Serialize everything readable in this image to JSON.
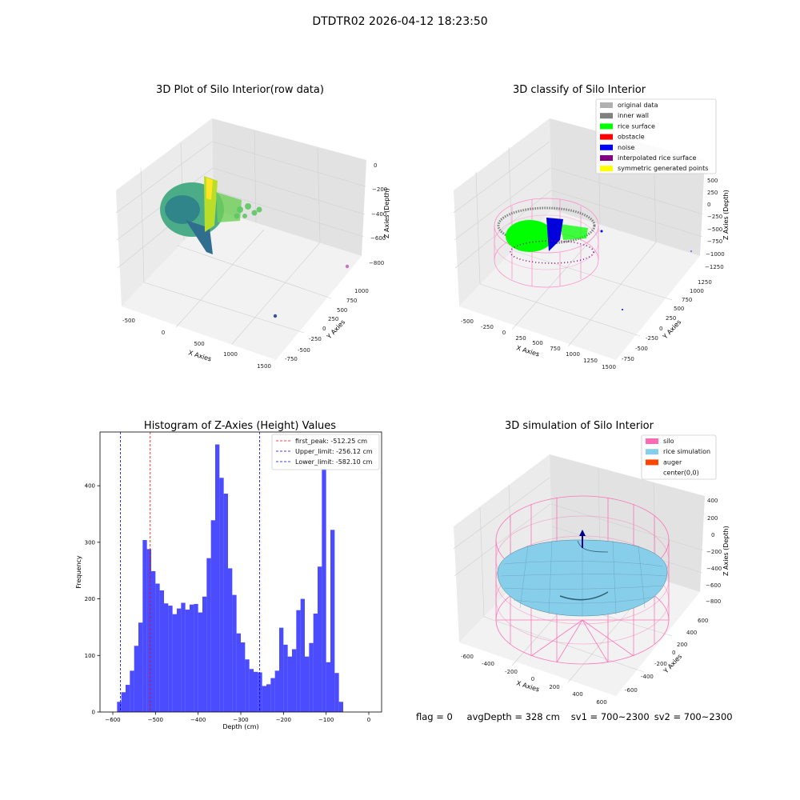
{
  "suptitle": "DTDTR02 2026-04-12 18:23:50",
  "panels": {
    "raw": {
      "title": "3D Plot of Silo Interior(row data)",
      "xlabel": "X Axies",
      "ylabel": "Y Axies",
      "zlabel": "Z Axies (Depth)",
      "xticks": [
        "-500",
        "0",
        "500",
        "1000",
        "1500"
      ],
      "yticks": [
        "-750",
        "-500",
        "-250",
        "0",
        "250",
        "500",
        "750",
        "1000"
      ],
      "zticks": [
        "0",
        "−200",
        "−400",
        "−600",
        "−800"
      ]
    },
    "classify": {
      "title": "3D classify of Silo Interior",
      "xlabel": "X Axies",
      "ylabel": "Y Axies",
      "zlabel": "Z Axies (Depth)",
      "xticks": [
        "-500",
        "-250",
        "0",
        "250",
        "500",
        "750",
        "1000",
        "1250",
        "1500"
      ],
      "yticks": [
        "-750",
        "-500",
        "-250",
        "0",
        "250",
        "500",
        "750",
        "1000",
        "1250"
      ],
      "zticks": [
        "500",
        "250",
        "0",
        "−250",
        "−500",
        "−750",
        "−1000",
        "−1250"
      ],
      "legend": [
        {
          "label": "original data",
          "color": "#b0b0b0"
        },
        {
          "label": "inner wall",
          "color": "#808080"
        },
        {
          "label": "rice surface",
          "color": "#00ff00"
        },
        {
          "label": "obstacle",
          "color": "#ff0000"
        },
        {
          "label": "noise",
          "color": "#0000ff"
        },
        {
          "label": "interpolated rice surface",
          "color": "#800080"
        },
        {
          "label": "symmetric generated points",
          "color": "#ffff00"
        }
      ]
    },
    "simulation": {
      "title": "3D simulation of Silo Interior",
      "xlabel": "X Axies",
      "ylabel": "Y Axies",
      "zlabel": "Z Axies (Depth)",
      "xticks": [
        "-600",
        "-400",
        "-200",
        "0",
        "200",
        "400",
        "600"
      ],
      "yticks": [
        "-600",
        "-400",
        "-200",
        "0",
        "200",
        "400",
        "600"
      ],
      "zticks": [
        "400",
        "200",
        "0",
        "−200",
        "−400",
        "−600",
        "−800"
      ],
      "legend": [
        {
          "label": "silo",
          "color": "#ff69b4"
        },
        {
          "label": "rice simulation",
          "color": "#87ceeb"
        },
        {
          "label": "auger",
          "color": "#ff4500"
        },
        {
          "label": "center(0,0)",
          "color": ""
        }
      ]
    }
  },
  "footer": {
    "flag": "flag = 0",
    "avg_depth": "avgDepth = 328 cm",
    "sv1": "sv1 = 700~2300",
    "sv2": "sv2 = 700~2300"
  },
  "colors": {
    "bars": "#0000ff",
    "first_peak": "#ff0000",
    "limits": "#0000ff",
    "silo": "#ff69b4",
    "rice": "#87ceeb"
  },
  "chart_data": [
    {
      "type": "histogram",
      "title": "Histogram of Z-Axies (Height) Values",
      "xlabel": "Depth (cm)",
      "ylabel": "Frequency",
      "xlim": [
        -630,
        30
      ],
      "ylim": [
        0,
        495
      ],
      "xticks": [
        -600,
        -500,
        -400,
        -300,
        -200,
        -100,
        0
      ],
      "yticks": [
        0,
        100,
        200,
        300,
        400
      ],
      "bin_width": 10,
      "bins_start": -590,
      "frequencies": [
        18,
        35,
        48,
        73,
        117,
        158,
        304,
        288,
        249,
        227,
        215,
        192,
        188,
        173,
        183,
        193,
        181,
        190,
        191,
        176,
        204,
        272,
        339,
        473,
        414,
        386,
        254,
        207,
        139,
        123,
        93,
        76,
        71,
        70,
        46,
        49,
        60,
        73,
        149,
        119,
        98,
        111,
        180,
        200,
        98,
        122,
        174,
        257,
        430,
        88,
        322,
        69,
        18
      ],
      "vlines": [
        {
          "label": "first_peak: -512.25 cm",
          "x": -512.25,
          "color": "#ff0000"
        },
        {
          "label": "Upper_limit: -256.12 cm",
          "x": -256.12,
          "color": "#0000ff"
        },
        {
          "label": "Lower_limit: -582.10 cm",
          "x": -582.1,
          "color": "#0000ff"
        }
      ],
      "legend_position": "top-right"
    }
  ]
}
